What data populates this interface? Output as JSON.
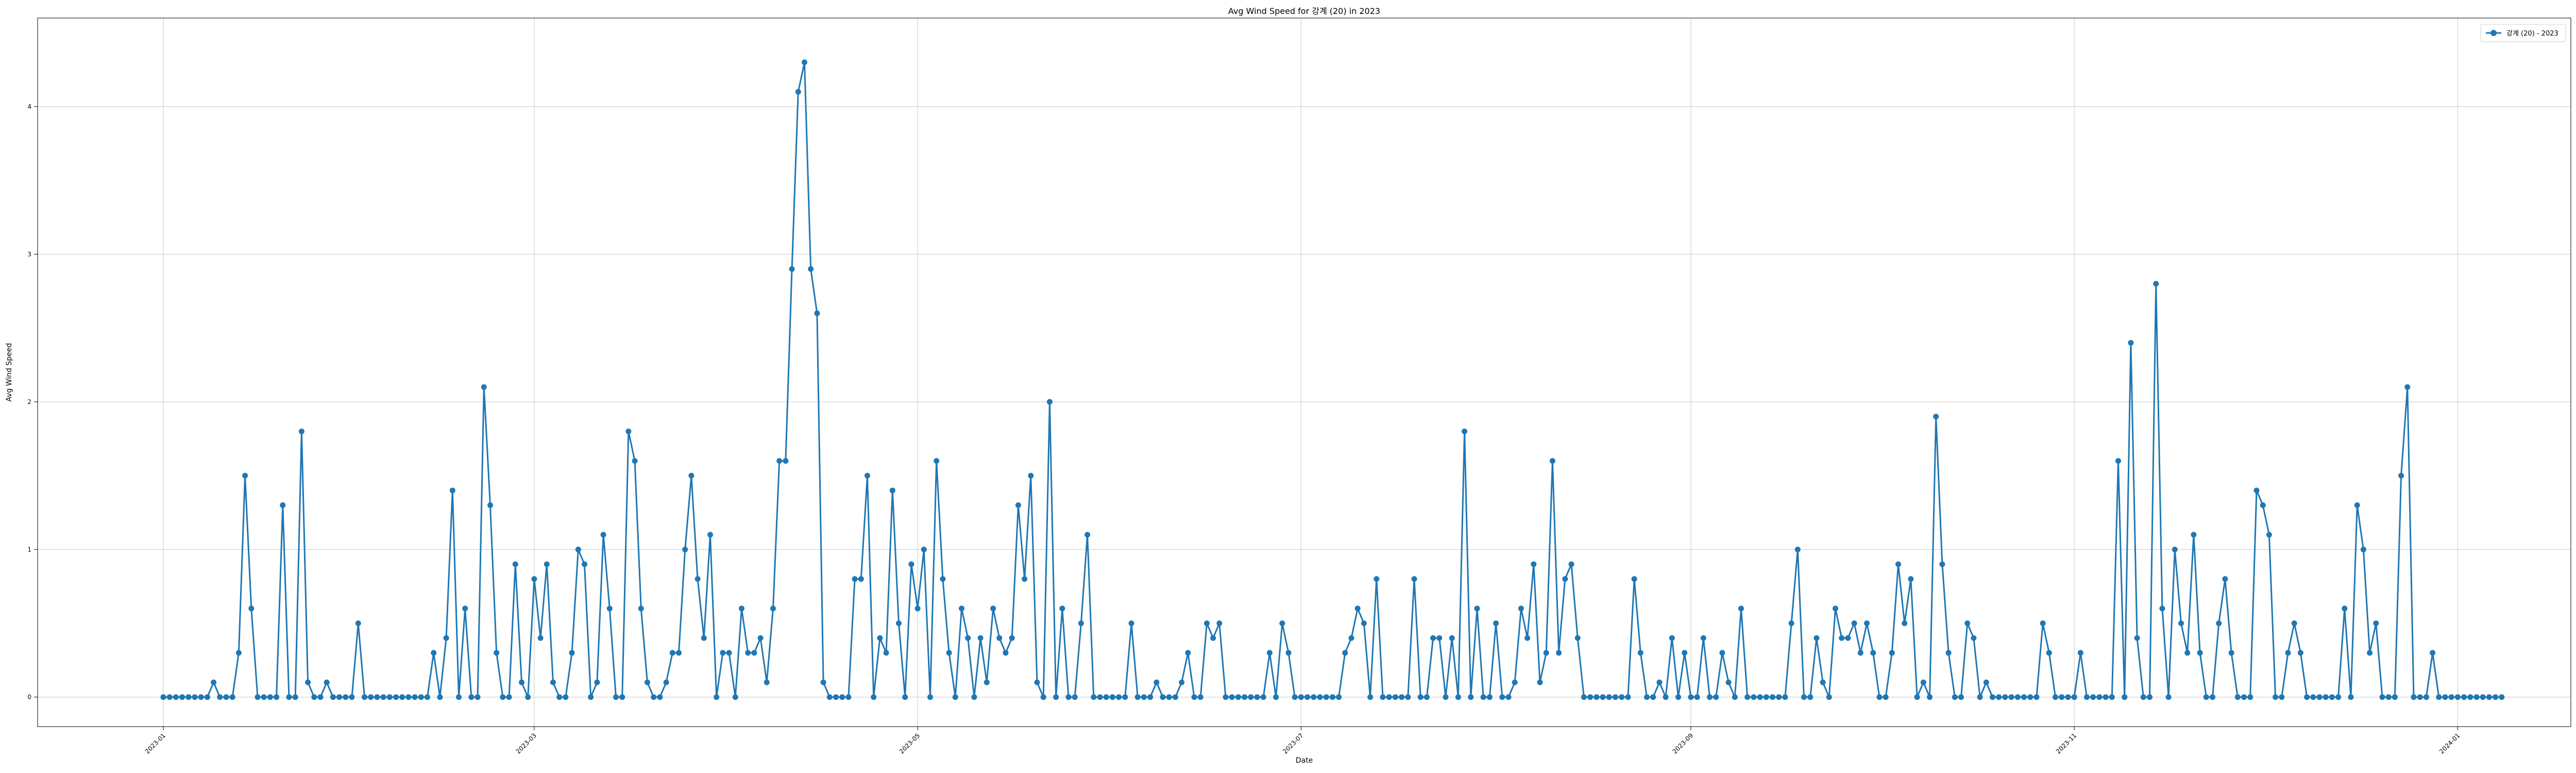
{
  "chart_data": {
    "type": "line",
    "title": "Avg Wind Speed for 강계 (20) in 2023",
    "xlabel": "Date",
    "ylabel": "Avg Wind Speed",
    "xlim": [
      "2022-12-12",
      "2024-01-19"
    ],
    "ylim": [
      -0.2,
      4.6
    ],
    "x_ticks": [
      "2023-01",
      "2023-03",
      "2023-05",
      "2023-07",
      "2023-09",
      "2023-11",
      "2024-01"
    ],
    "y_ticks": [
      0,
      1,
      2,
      3,
      4
    ],
    "grid": true,
    "legend_position": "top-right",
    "series": [
      {
        "name": "강계 (20) - 2023",
        "color": "#1f77b4",
        "marker": "circle",
        "start_date": "2023-01-01",
        "x_step_days": 1,
        "values": [
          0,
          0,
          0,
          0,
          0,
          0,
          0,
          0,
          0.1,
          0,
          0,
          0,
          0.3,
          1.5,
          0.6,
          0,
          0,
          0,
          0,
          1.3,
          0,
          0,
          1.8,
          0.1,
          0,
          0,
          0.1,
          0,
          0,
          0,
          0,
          0.5,
          0,
          0,
          0,
          0,
          0,
          0,
          0,
          0,
          0,
          0,
          0,
          0.3,
          0,
          0.4,
          1.4,
          0,
          0.6,
          0,
          0,
          2.1,
          1.3,
          0.3,
          0,
          0,
          0.9,
          0.1,
          0,
          0.8,
          0.4,
          0.9,
          0.1,
          0,
          0,
          0.3,
          1,
          0.9,
          0,
          0.1,
          1.1,
          0.6,
          0,
          0,
          1.8,
          1.6,
          0.6,
          0.1,
          0,
          0,
          0.1,
          0.3,
          0.3,
          1,
          1.5,
          0.8,
          0.4,
          1.1,
          0,
          0.3,
          0.3,
          0,
          0.6,
          0.3,
          0.3,
          0.4,
          0.1,
          0.6,
          1.6,
          1.6,
          2.9,
          4.1,
          4.3,
          2.9,
          2.6,
          0.1,
          0,
          0,
          0,
          0,
          0.8,
          0.8,
          1.5,
          0,
          0.4,
          0.3,
          1.4,
          0.5,
          0,
          0.9,
          0.6,
          1,
          0,
          1.6,
          0.8,
          0.3,
          0,
          0.6,
          0.4,
          0,
          0.4,
          0.1,
          0.6,
          0.4,
          0.3,
          0.4,
          1.3,
          0.8,
          1.5,
          0.1,
          0,
          2,
          0,
          0.6,
          0,
          0,
          0.5,
          1.1,
          0,
          0,
          0,
          0,
          0,
          0,
          0.5,
          0,
          0,
          0,
          0.1,
          0,
          0,
          0,
          0.1,
          0.3,
          0,
          0,
          0.5,
          0.4,
          0.5,
          0,
          0,
          0,
          0,
          0,
          0,
          0,
          0.3,
          0,
          0.5,
          0.3,
          0,
          0,
          0,
          0,
          0,
          0,
          0,
          0,
          0.3,
          0.4,
          0.6,
          0.5,
          0,
          0.8,
          0,
          0,
          0,
          0,
          0,
          0.8,
          0,
          0,
          0.4,
          0.4,
          0,
          0.4,
          0,
          1.8,
          0,
          0.6,
          0,
          0,
          0.5,
          0,
          0,
          0.1,
          0.6,
          0.4,
          0.9,
          0.1,
          0.3,
          1.6,
          0.3,
          0.8,
          0.9,
          0.4,
          0,
          0,
          0,
          0,
          0,
          0,
          0,
          0,
          0.8,
          0.3,
          0,
          0,
          0.1,
          0,
          0.4,
          0,
          0.3,
          0,
          0,
          0.4,
          0,
          0,
          0.3,
          0.1,
          0,
          0.6,
          0,
          0,
          0,
          0,
          0,
          0,
          0,
          0.5,
          1,
          0,
          0,
          0.4,
          0.1,
          0,
          0.6,
          0.4,
          0.4,
          0.5,
          0.3,
          0.5,
          0.3,
          0,
          0,
          0.3,
          0.9,
          0.5,
          0.8,
          0,
          0.1,
          0,
          1.9,
          0.9,
          0.3,
          0,
          0,
          0.5,
          0.4,
          0,
          0.1,
          0,
          0,
          0,
          0,
          0,
          0,
          0,
          0,
          0.5,
          0.3,
          0,
          0,
          0,
          0,
          0.3,
          0,
          0,
          0,
          0,
          0,
          1.6,
          0,
          2.4,
          0.4,
          0,
          0,
          2.8,
          0.6,
          0,
          1,
          0.5,
          0.3,
          1.1,
          0.3,
          0,
          0,
          0.5,
          0.8,
          0.3,
          0,
          0,
          0,
          1.4,
          1.3,
          1.1,
          0,
          0,
          0.3,
          0.5,
          0.3,
          0,
          0,
          0,
          0,
          0,
          0,
          0.6,
          0,
          1.3,
          1,
          0.3,
          0.5,
          0,
          0,
          0,
          1.5,
          2.1,
          0,
          0,
          0,
          0.3,
          0,
          0,
          0,
          0,
          0,
          0,
          0,
          0,
          0,
          0,
          0
        ]
      }
    ]
  }
}
